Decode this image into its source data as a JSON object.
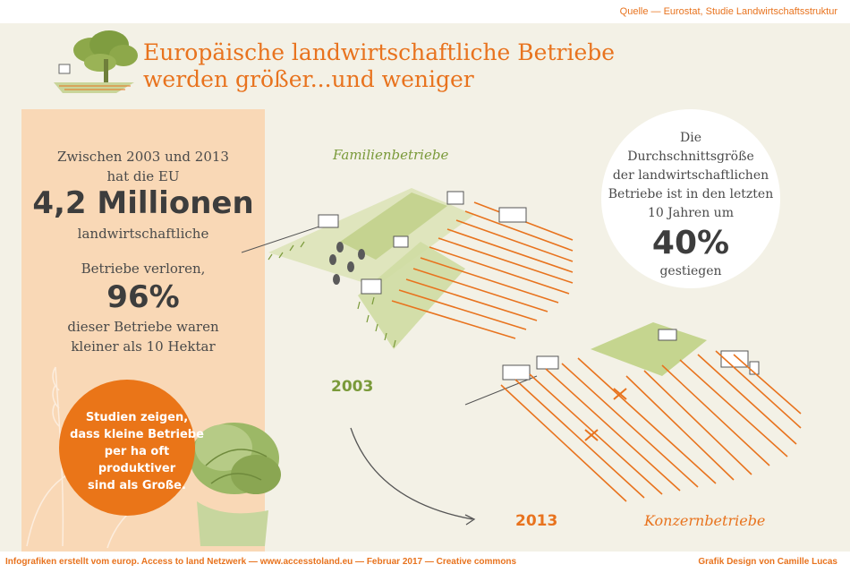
{
  "header": {
    "source": "Quelle  — Eurostat, Studie Landwirtschaftsstruktur",
    "title_line1": "Europäische landwirtschaftliche Betriebe",
    "title_line2": "werden größer...und weniger"
  },
  "left_panel": {
    "line1": "Zwischen 2003 und 2013",
    "line2": "hat die EU",
    "big_number": "4,2 Millionen",
    "line3": "landwirtschaftliche",
    "line4": "Betriebe verloren,",
    "percent": "96%",
    "line5": "dieser Betriebe waren",
    "line6": "kleiner als 10 Hektar"
  },
  "callout": {
    "line1": "Studien zeigen,",
    "line2": "dass kleine Betriebe",
    "line3": "per ha oft produktiver",
    "line4": "sind als Große."
  },
  "right_circle": {
    "line1": "Die",
    "line2": "Durchschnittsgröße",
    "line3": "der landwirtschaftlichen",
    "line4": "Betriebe ist in den letzten",
    "line5": "10 Jahren um",
    "percent": "40%",
    "line6": "gestiegen"
  },
  "labels": {
    "family": "Familienbetriebe",
    "corporate": "Konzernbetriebe",
    "year_start": "2003",
    "year_end": "2013"
  },
  "footer": {
    "left": "Infografiken erstellt vom europ. Access to land Netzwerk  — www.accesstoland.eu — Februar 2017 — Creative commons",
    "right": "Grafik Design von Camille Lucas"
  },
  "colors": {
    "orange": "#e8731e",
    "green": "#7a9a3a",
    "panel": "#f9d8b6",
    "background": "#f3f1e6"
  }
}
